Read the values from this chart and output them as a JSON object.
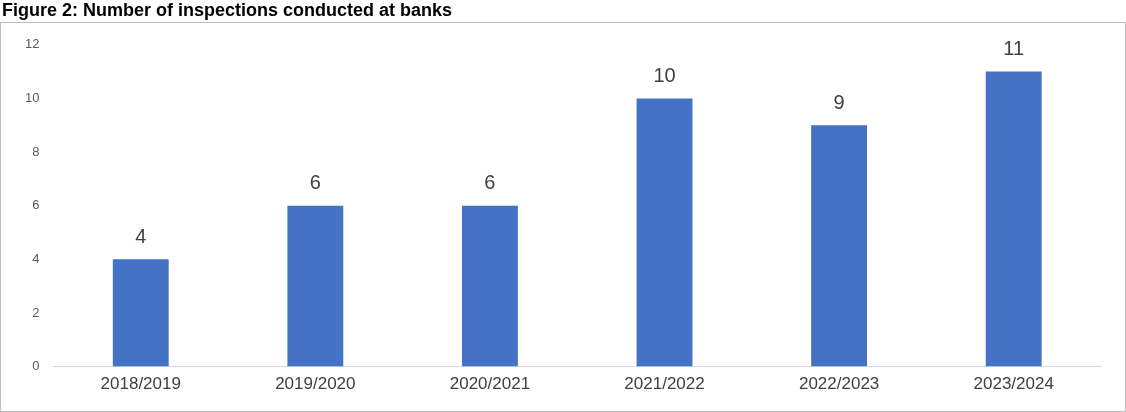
{
  "chart_data": {
    "type": "bar",
    "title": "Figure 2: Number of inspections conducted at banks",
    "categories": [
      "2018/2019",
      "2019/2020",
      "2020/2021",
      "2021/2022",
      "2022/2023",
      "2023/2024"
    ],
    "values": [
      4,
      6,
      6,
      10,
      9,
      11
    ],
    "color": "#4472c4",
    "ylim": [
      0,
      12
    ],
    "yticks": [
      0,
      2,
      4,
      6,
      8,
      10,
      12
    ],
    "grid": false,
    "legend": false,
    "data_labels": true
  }
}
